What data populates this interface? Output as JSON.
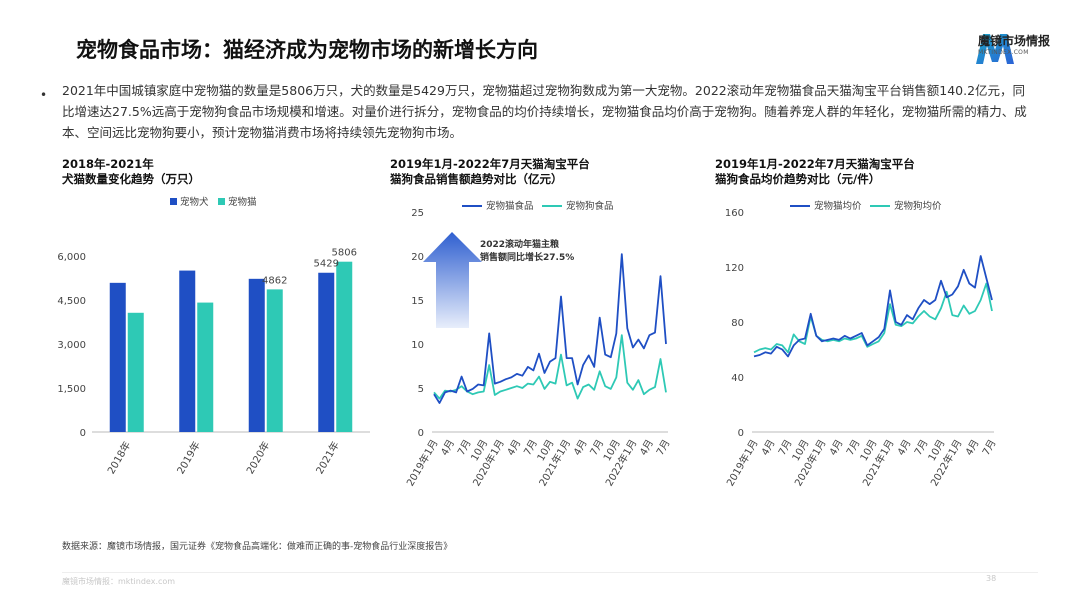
{
  "title": "宠物食品市场：猫经济成为宠物市场的新增长方向",
  "logo": {
    "name": "魔镜市场情报",
    "sub": "MKTINDEX.COM"
  },
  "bullet": {
    "dot": "•",
    "text": "2021年中国城镇家庭中宠物猫的数量是5806万只，犬的数量是5429万只，宠物猫超过宠物狗数成为第一大宠物。2022滚动年宠物猫食品天猫淘宝平台销售额140.2亿元，同比增速达27.5%远高于宠物狗食品市场规模和增速。对量价进行拆分，宠物食品的均价持续增长，宠物猫食品均价高于宠物狗。随着养宠人群的年轻化，宠物猫所需的精力、成本、空间远比宠物狗要小，预计宠物猫消费市场将持续领先宠物狗市场。"
  },
  "colors": {
    "dog": "#1f4fc4",
    "cat": "#2ec9b5",
    "arrow_top": "#2f5fd0",
    "arrow_bottom": "#e8eefb"
  },
  "chart_data": [
    {
      "type": "bar",
      "title_line1": "2018年-2021年",
      "title_line2": "犬猫数量变化趋势（万只）",
      "categories": [
        "2018年",
        "2019年",
        "2020年",
        "2021年"
      ],
      "series": [
        {
          "name": "宠物犬",
          "values": [
            5085,
            5503,
            5222,
            5429
          ]
        },
        {
          "name": "宠物猫",
          "values": [
            4064,
            4412,
            4862,
            5806
          ]
        }
      ],
      "data_labels": [
        {
          "series": 1,
          "index": 2,
          "text": "4862"
        },
        {
          "series": 0,
          "index": 3,
          "text": "5429"
        },
        {
          "series": 1,
          "index": 3,
          "text": "5806"
        }
      ],
      "yticks": [
        "0",
        "1,500",
        "3,000",
        "4,500",
        "6,000"
      ],
      "ylim": [
        0,
        6000
      ],
      "legend": "top",
      "grid": false
    },
    {
      "type": "line",
      "title_line1": "2019年1月-2022年7月天猫淘宝平台",
      "title_line2": "猫狗食品销售额趋势对比（亿元）",
      "xticks": [
        "2019年1月",
        "4月",
        "7月",
        "10月",
        "2020年1月",
        "4月",
        "7月",
        "10月",
        "2021年1月",
        "4月",
        "7月",
        "10月",
        "2022年1月",
        "4月",
        "7月"
      ],
      "yticks": [
        "0",
        "5",
        "10",
        "15",
        "20",
        "25"
      ],
      "ylim": [
        0,
        25
      ],
      "series": [
        {
          "name": "宠物猫食品",
          "values": [
            4.3,
            3.3,
            4.5,
            4.7,
            4.5,
            6.3,
            4.6,
            4.9,
            5.4,
            5.3,
            11.2,
            5.5,
            5.7,
            6.0,
            6.2,
            6.6,
            6.4,
            7.4,
            7.0,
            8.9,
            6.7,
            8.0,
            8.4,
            15.4,
            8.4,
            8.4,
            5.4,
            7.6,
            8.7,
            7.4,
            13.0,
            8.8,
            8.5,
            11.2,
            20.2,
            11.8,
            9.6,
            10.5,
            9.5,
            11.0,
            11.3,
            17.7,
            10.0
          ]
        },
        {
          "name": "宠物狗食品",
          "values": [
            4.5,
            3.8,
            4.7,
            4.6,
            4.8,
            5.2,
            4.6,
            4.3,
            4.5,
            4.6,
            7.6,
            4.2,
            4.6,
            4.8,
            5.0,
            5.2,
            5.0,
            5.5,
            5.4,
            6.3,
            4.9,
            5.7,
            5.5,
            8.8,
            5.3,
            5.6,
            3.8,
            5.1,
            5.4,
            4.8,
            6.9,
            5.2,
            4.9,
            6.2,
            11.0,
            5.6,
            4.8,
            5.9,
            4.3,
            4.8,
            5.1,
            8.3,
            4.5
          ]
        }
      ],
      "annotation": {
        "line1": "2022滚动年猫主粮",
        "line2": "销售额同比增长27.5%"
      },
      "legend": "top",
      "grid": false
    },
    {
      "type": "line",
      "title_line1": "2019年1月-2022年7月天猫淘宝平台",
      "title_line2": "猫狗食品均价趋势对比（元/件）",
      "xticks": [
        "2019年1月",
        "4月",
        "7月",
        "10月",
        "2020年1月",
        "4月",
        "7月",
        "10月",
        "2021年1月",
        "4月",
        "7月",
        "10月",
        "2022年1月",
        "4月",
        "7月"
      ],
      "yticks": [
        "0",
        "40",
        "80",
        "120",
        "160"
      ],
      "ylim": [
        0,
        160
      ],
      "series": [
        {
          "name": "宠物猫均价",
          "values": [
            55,
            56,
            58,
            57,
            62,
            60,
            55,
            63,
            67,
            68,
            86,
            70,
            66,
            67,
            68,
            67,
            70,
            68,
            70,
            72,
            63,
            66,
            69,
            75,
            103,
            80,
            78,
            85,
            82,
            90,
            96,
            93,
            96,
            110,
            98,
            100,
            106,
            118,
            108,
            105,
            128,
            112,
            96
          ]
        },
        {
          "name": "宠物狗均价",
          "values": [
            58,
            60,
            61,
            60,
            64,
            63,
            58,
            71,
            66,
            64,
            84,
            70,
            67,
            66,
            67,
            66,
            68,
            67,
            68,
            70,
            62,
            64,
            66,
            72,
            93,
            78,
            77,
            80,
            79,
            84,
            88,
            84,
            82,
            90,
            102,
            85,
            84,
            92,
            86,
            88,
            96,
            108,
            88
          ]
        }
      ],
      "legend": "top",
      "grid": false
    }
  ],
  "source": "数据来源：魔镜市场情报，国元证券《宠物食品高端化：做难而正确的事-宠物食品行业深度报告》",
  "footer": {
    "left": "魔镜市场情报：mktindex.com",
    "page": "38"
  }
}
